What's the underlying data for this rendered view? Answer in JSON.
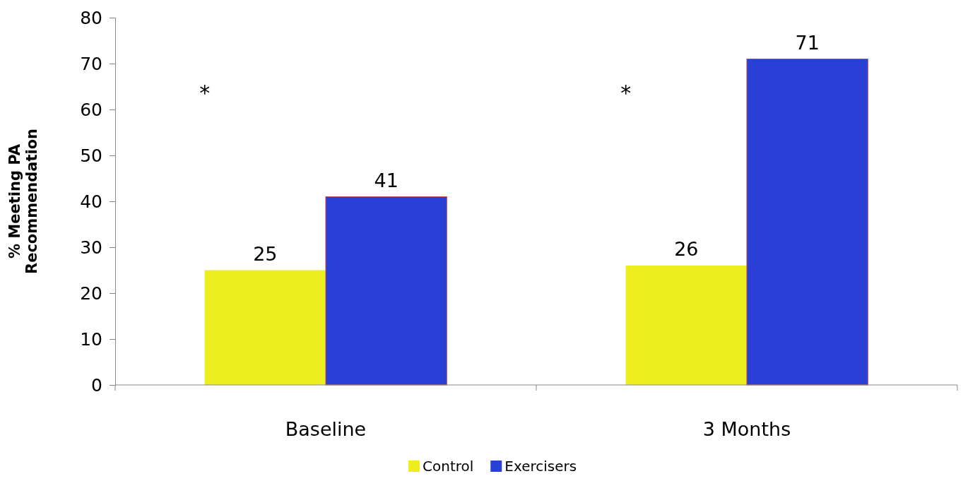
{
  "chart_data": {
    "type": "bar",
    "categories": [
      "Baseline",
      "3 Months"
    ],
    "series": [
      {
        "name": "Control",
        "color": "#eeee1e",
        "values": [
          25,
          26
        ]
      },
      {
        "name": "Exercisers",
        "color": "#2a3fd6",
        "values": [
          41,
          71
        ]
      }
    ],
    "ylabel": "% Meeting PA Recommendation",
    "ylim": [
      0,
      80
    ],
    "yticks": [
      0,
      10,
      20,
      30,
      40,
      50,
      60,
      70,
      80
    ],
    "data_labels": true,
    "grid": false,
    "legend": "bottom",
    "annotations": [
      "*",
      "*"
    ]
  }
}
